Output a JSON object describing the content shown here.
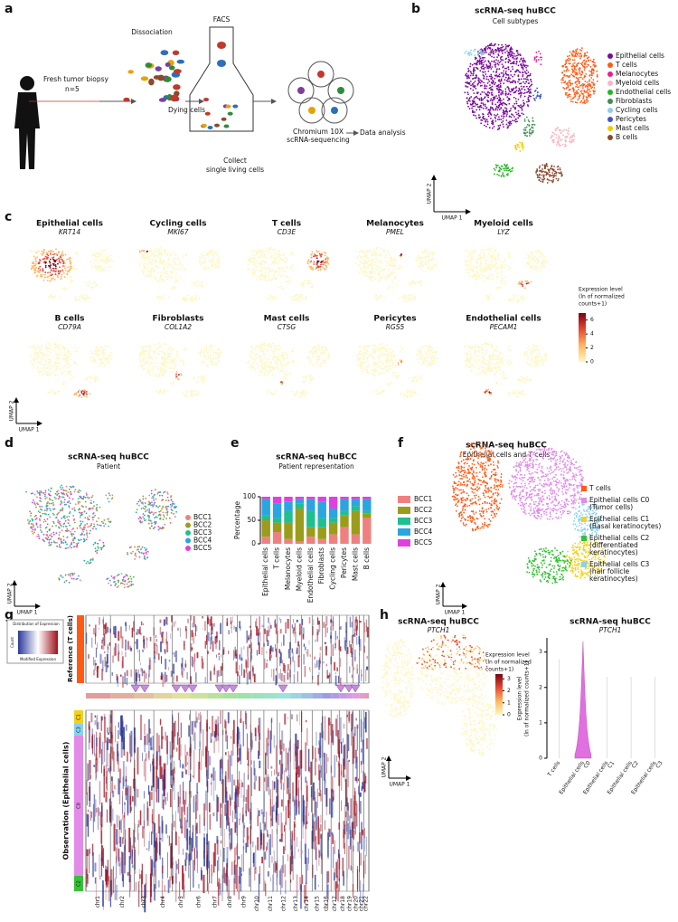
{
  "panel_labels": [
    "a",
    "b",
    "c",
    "d",
    "e",
    "f",
    "g",
    "h"
  ],
  "a": {
    "biopsy": "Fresh tumor biopsy",
    "n": "n=5",
    "dissociation": "Dissociation",
    "facs": "FACS",
    "dying": "Dying cells",
    "collect": [
      "Collect",
      "single living cells"
    ],
    "sequencing": [
      "Chromium 10X",
      "scRNA-sequencing"
    ],
    "analysis": "Data analysis"
  },
  "b": {
    "title": "scRNA-seq huBCC",
    "subtitle": "Cell subtypes",
    "x_label": "UMAP 1",
    "y_label": "UMAP 2",
    "legend": [
      {
        "name": "Epithelial cells",
        "color": "#7a0a9a"
      },
      {
        "name": "T cells",
        "color": "#ff5a14"
      },
      {
        "name": "Melanocytes",
        "color": "#e8208a"
      },
      {
        "name": "Myeloid cells",
        "color": "#f7b6c2"
      },
      {
        "name": "Endothelial cells",
        "color": "#23b523"
      },
      {
        "name": "Fibroblasts",
        "color": "#3f8f50"
      },
      {
        "name": "Cycling cells",
        "color": "#8ccfe8"
      },
      {
        "name": "Pericytes",
        "color": "#3f55c8"
      },
      {
        "name": "Mast cells",
        "color": "#f2cc00"
      },
      {
        "name": "B cells",
        "color": "#8b4a2c"
      }
    ]
  },
  "c": {
    "maps": [
      {
        "cell": "Epithelial cells",
        "gene": "KRT14"
      },
      {
        "cell": "Cycling cells",
        "gene": "MKI67"
      },
      {
        "cell": "T cells",
        "gene": "CD3E"
      },
      {
        "cell": "Melanocytes",
        "gene": "PMEL"
      },
      {
        "cell": "Myeloid cells",
        "gene": "LYZ"
      },
      {
        "cell": "B cells",
        "gene": "CD79A"
      },
      {
        "cell": "Fibroblasts",
        "gene": "COL1A2"
      },
      {
        "cell": "Mast cells",
        "gene": "CTSG"
      },
      {
        "cell": "Pericytes",
        "gene": "RGS5"
      },
      {
        "cell": "Endothelial cells",
        "gene": "PECAM1"
      }
    ],
    "colorbar": {
      "title": [
        "Expression level",
        "(ln of normalized",
        "counts+1)"
      ],
      "lim": [
        0,
        7
      ],
      "ticks": [
        0,
        2,
        4,
        6
      ],
      "colors": [
        "#fff6c2",
        "#fdb863",
        "#e34a33",
        "#7f0010"
      ]
    },
    "x_label": "UMAP 1",
    "y_label": "UMAP 2"
  },
  "d": {
    "title": "scRNA-seq huBCC",
    "subtitle": "Patient",
    "x_label": "UMAP 1",
    "y_label": "UMAP 2",
    "legend": [
      {
        "name": "BCC1",
        "color": "#f08080"
      },
      {
        "name": "BCC2",
        "color": "#9c9c1c"
      },
      {
        "name": "BCC3",
        "color": "#1fbf8f"
      },
      {
        "name": "BCC4",
        "color": "#2aa5e0"
      },
      {
        "name": "BCC5",
        "color": "#e040e0"
      }
    ]
  },
  "chart_data": [
    {
      "type": "bar",
      "stacked": true,
      "title": "scRNA-seq huBCC",
      "subtitle": "Patient representation",
      "y_label": "Percentage",
      "categories": [
        "Epithelial cells",
        "T cells",
        "Melanocytes",
        "Myeloid cells",
        "Endothelial cells",
        "Fibroblasts",
        "Cycling cells",
        "Pericytes",
        "Mast cells",
        "B cells"
      ],
      "series": [
        {
          "name": "BCC1",
          "color": "#f08080",
          "values": [
            15,
            25,
            10,
            5,
            15,
            10,
            20,
            35,
            20,
            55
          ]
        },
        {
          "name": "BCC2",
          "color": "#9c9c1c",
          "values": [
            35,
            20,
            35,
            70,
            20,
            25,
            25,
            25,
            50,
            10
          ]
        },
        {
          "name": "BCC3",
          "color": "#1fbf8f",
          "values": [
            10,
            10,
            25,
            10,
            35,
            20,
            10,
            10,
            10,
            5
          ]
        },
        {
          "name": "BCC4",
          "color": "#2aa5e0",
          "values": [
            35,
            30,
            20,
            10,
            25,
            35,
            20,
            25,
            15,
            25
          ]
        },
        {
          "name": "BCC5",
          "color": "#e040e0",
          "values": [
            5,
            15,
            10,
            5,
            5,
            10,
            25,
            5,
            5,
            5
          ]
        }
      ],
      "ylim": [
        0,
        100
      ],
      "yticks": [
        0,
        50,
        100
      ]
    },
    {
      "type": "violin",
      "title": "scRNA-seq huBCC",
      "subtitle": "PTCH1",
      "y_label": [
        "Expression level",
        "(ln of normalized counts+1)"
      ],
      "categories": [
        [
          "T cells"
        ],
        [
          "Epithelial cells",
          "C0"
        ],
        [
          "Epithelial cells",
          "C1"
        ],
        [
          "Epithelial cells",
          "C2"
        ],
        [
          "Epithelial cells",
          "C3"
        ]
      ],
      "color": "#e070e0",
      "ylim": [
        0,
        3.4
      ],
      "yticks": [
        0,
        1,
        2,
        3
      ]
    }
  ],
  "f": {
    "title": "scRNA-seq huBCC",
    "subtitle": "Epithelial cells and T cells",
    "x_label": "UMAP 1",
    "y_label": "UMAP 2",
    "legend": [
      {
        "name": [
          "T cells"
        ],
        "color": "#ff5a14"
      },
      {
        "name": [
          "Epithelial cells C0",
          "(Tumor cells)"
        ],
        "color": "#e28be8"
      },
      {
        "name": [
          "Epithelial cells C1",
          "(Basal keratinocytes)"
        ],
        "color": "#f2d21e"
      },
      {
        "name": [
          "Epithelial cells C2",
          "(differentiated",
          "keratinocytes)"
        ],
        "color": "#35c235"
      },
      {
        "name": [
          "Epithelial cells C3",
          "(hair follicle",
          "keratinocytes)"
        ],
        "color": "#86d2f2"
      }
    ]
  },
  "g": {
    "inset": {
      "title": "Distribution of Expression",
      "y_label": "Count",
      "x_label": "Modified Expression"
    },
    "reference": "Reference (T cells)",
    "observation": "Observation (Epithelial cells)",
    "clusters": [
      {
        "name": "C1",
        "color": "#f2d21e"
      },
      {
        "name": "C3",
        "color": "#86d2f2"
      },
      {
        "name": "C0",
        "color": "#e28be8"
      },
      {
        "name": "C2",
        "color": "#35c235"
      }
    ],
    "chromosomes": [
      "chr1",
      "chr2",
      "chr3",
      "chr4",
      "chr5",
      "chr6",
      "chr7",
      "chr8",
      "chr9",
      "chr10",
      "chr11",
      "chr12",
      "chr13",
      "chr14",
      "chr15",
      "chr16",
      "chr17",
      "chr18",
      "chr19",
      "chr20",
      "chr21",
      "chr22"
    ]
  },
  "h": {
    "title": "scRNA-seq huBCC",
    "gene": "PTCH1",
    "x_label": "UMAP 1",
    "y_label": "UMAP 2",
    "colorbar": {
      "title": [
        "Expression level",
        "(ln of normalized",
        "counts+1)"
      ],
      "lim": [
        0,
        3.4
      ],
      "ticks": [
        0,
        1,
        2,
        3
      ]
    }
  }
}
